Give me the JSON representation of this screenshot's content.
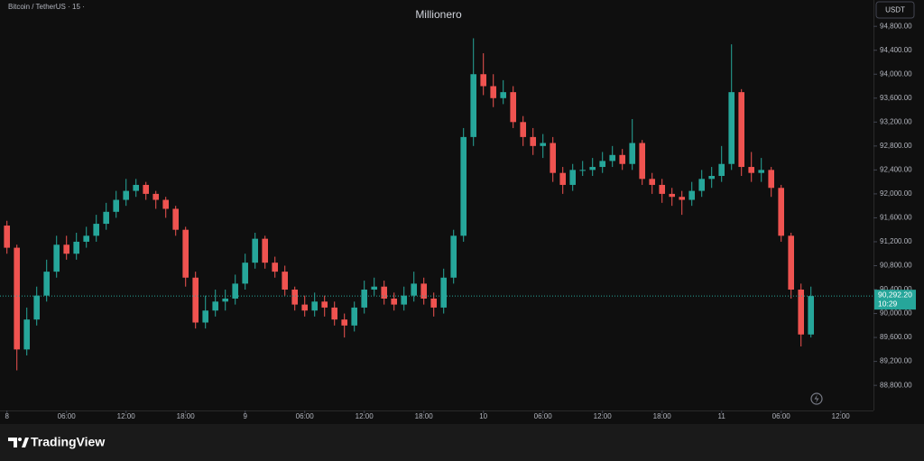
{
  "chart_data": {
    "type": "candlestick",
    "title": "Millionero",
    "symbol": "Bitcoin / TetherUS · 15 ·",
    "currency": "USDT",
    "brand": "TradingView",
    "last_price_label": "90,292.20",
    "countdown": "10:29",
    "up_color": "#26a69a",
    "down_color": "#ef5350",
    "grid": false,
    "xlim": [
      -0.7,
      87.3
    ],
    "xticks": [
      {
        "value": 0,
        "label": "8"
      },
      {
        "value": 6,
        "label": "06:00"
      },
      {
        "value": 12,
        "label": "12:00"
      },
      {
        "value": 18,
        "label": "18:00"
      },
      {
        "value": 24,
        "label": "9"
      },
      {
        "value": 30,
        "label": "06:00"
      },
      {
        "value": 36,
        "label": "12:00"
      },
      {
        "value": 42,
        "label": "18:00"
      },
      {
        "value": 48,
        "label": "10"
      },
      {
        "value": 54,
        "label": "06:00"
      },
      {
        "value": 60,
        "label": "12:00"
      },
      {
        "value": 66,
        "label": "18:00"
      },
      {
        "value": 72,
        "label": "11"
      },
      {
        "value": 78,
        "label": "06:00"
      },
      {
        "value": 84,
        "label": "12:00"
      }
    ],
    "ylim": [
      88380,
      95240
    ],
    "yticks": [
      {
        "value": 88800,
        "label": "88,800.00"
      },
      {
        "value": 89200,
        "label": "89,200.00"
      },
      {
        "value": 89600,
        "label": "89,600.00"
      },
      {
        "value": 90000,
        "label": "90,000.00"
      },
      {
        "value": 90400,
        "label": "90,400.00"
      },
      {
        "value": 90800,
        "label": "90,800.00"
      },
      {
        "value": 91200,
        "label": "91,200.00"
      },
      {
        "value": 91600,
        "label": "91,600.00"
      },
      {
        "value": 92000,
        "label": "92,000.00"
      },
      {
        "value": 92400,
        "label": "92,400.00"
      },
      {
        "value": 92800,
        "label": "92,800.00"
      },
      {
        "value": 93200,
        "label": "93,200.00"
      },
      {
        "value": 93600,
        "label": "93,600.00"
      },
      {
        "value": 94000,
        "label": "94,000.00"
      },
      {
        "value": 94400,
        "label": "94,400.00"
      },
      {
        "value": 94800,
        "label": "94,800.00"
      }
    ],
    "x": [
      0,
      1,
      2,
      3,
      4,
      5,
      6,
      7,
      8,
      9,
      10,
      11,
      12,
      13,
      14,
      15,
      16,
      17,
      18,
      19,
      20,
      21,
      22,
      23,
      24,
      25,
      26,
      27,
      28,
      29,
      30,
      31,
      32,
      33,
      34,
      35,
      36,
      37,
      38,
      39,
      40,
      41,
      42,
      43,
      44,
      45,
      46,
      47,
      48,
      49,
      50,
      51,
      52,
      53,
      54,
      55,
      56,
      57,
      58,
      59,
      60,
      61,
      62,
      63,
      64,
      65,
      66,
      67,
      68,
      69,
      70,
      71,
      72,
      73,
      74,
      75,
      76,
      77,
      78,
      79,
      80,
      81
    ],
    "open": [
      91470,
      91100,
      89400,
      89900,
      90300,
      90700,
      91150,
      91000,
      91200,
      91300,
      91500,
      91700,
      91900,
      92050,
      92150,
      92000,
      91900,
      91750,
      91400,
      90600,
      89850,
      90050,
      90200,
      90250,
      90500,
      90850,
      91250,
      90850,
      90700,
      90400,
      90150,
      90050,
      90200,
      90100,
      89900,
      89800,
      90100,
      90400,
      90450,
      90250,
      90150,
      90300,
      90500,
      90250,
      90100,
      90600,
      91300,
      92950,
      94000,
      93800,
      93600,
      93700,
      93200,
      92950,
      92800,
      92850,
      92350,
      92150,
      92400,
      92400,
      92450,
      92550,
      92650,
      92500,
      92850,
      92250,
      92150,
      92000,
      91950,
      91900,
      92050,
      92250,
      92300,
      92500,
      93700,
      92450,
      92350,
      92400,
      92100,
      91300,
      90400,
      89650
    ],
    "high": [
      91550,
      91150,
      90100,
      90450,
      90900,
      91300,
      91300,
      91350,
      91450,
      91650,
      91850,
      92050,
      92250,
      92250,
      92200,
      92050,
      91950,
      91800,
      91450,
      90700,
      90300,
      90400,
      90400,
      90650,
      91000,
      91350,
      91300,
      90950,
      90800,
      90450,
      90300,
      90350,
      90300,
      90200,
      90000,
      90200,
      90550,
      90600,
      90550,
      90350,
      90450,
      90700,
      90600,
      90350,
      90750,
      91400,
      93100,
      94600,
      94350,
      94000,
      93900,
      93800,
      93300,
      93100,
      93000,
      92950,
      92450,
      92500,
      92550,
      92600,
      92700,
      92800,
      92750,
      93250,
      92900,
      92350,
      92250,
      92100,
      92050,
      92200,
      92400,
      92450,
      92800,
      94500,
      93750,
      92700,
      92600,
      92450,
      92150,
      91350,
      90500,
      90450
    ],
    "low": [
      91000,
      89050,
      89300,
      89800,
      90200,
      90600,
      90900,
      90900,
      91100,
      91200,
      91400,
      91600,
      91800,
      91950,
      91900,
      91750,
      91600,
      91300,
      90450,
      89750,
      89750,
      89950,
      90050,
      90150,
      90400,
      90750,
      90750,
      90600,
      90300,
      90050,
      89950,
      89950,
      89950,
      89800,
      89600,
      89700,
      90000,
      90300,
      90150,
      90050,
      90050,
      90200,
      90150,
      89950,
      90000,
      90500,
      91200,
      92800,
      93650,
      93450,
      93500,
      93100,
      92800,
      92650,
      92600,
      92200,
      92000,
      92050,
      92300,
      92300,
      92350,
      92450,
      92400,
      92400,
      92150,
      92000,
      91850,
      91800,
      91650,
      91800,
      91950,
      92100,
      92200,
      92400,
      92300,
      92200,
      92200,
      91950,
      91200,
      90250,
      89450,
      89600
    ],
    "close": [
      91100,
      89400,
      89900,
      90300,
      90700,
      91150,
      91000,
      91200,
      91300,
      91500,
      91700,
      91900,
      92050,
      92150,
      92000,
      91900,
      91750,
      91400,
      90600,
      89850,
      90050,
      90200,
      90250,
      90500,
      90850,
      91250,
      90850,
      90700,
      90400,
      90150,
      90050,
      90200,
      90100,
      89900,
      89800,
      90100,
      90400,
      90450,
      90250,
      90150,
      90300,
      90500,
      90250,
      90100,
      90600,
      91300,
      92950,
      94000,
      93800,
      93600,
      93700,
      93200,
      92950,
      92800,
      92850,
      92350,
      92150,
      92400,
      92400,
      92450,
      92550,
      92650,
      92500,
      92850,
      92250,
      92150,
      92000,
      91950,
      91900,
      92050,
      92250,
      92300,
      92500,
      93700,
      92450,
      92350,
      92400,
      92100,
      91300,
      90400,
      89650,
      90292.2
    ]
  }
}
